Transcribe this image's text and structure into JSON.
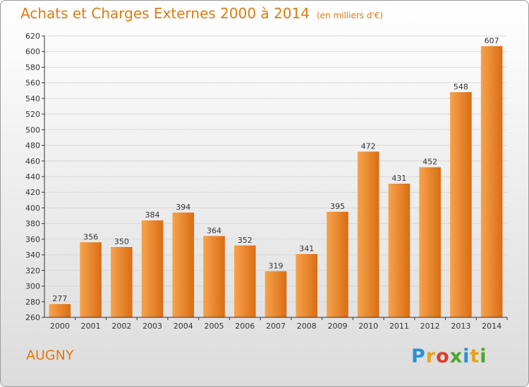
{
  "title": {
    "main": "Achats et Charges Externes 2000 à 2014",
    "unit": "(en milliers d'€)"
  },
  "place": "AUGNY",
  "logo": {
    "text": "Proxiti",
    "letters": [
      "P",
      "r",
      "o",
      "x",
      "i",
      "t",
      "i"
    ],
    "colors": [
      "#2a8fd6",
      "#e8a21a",
      "#d9402b",
      "#4aa82e",
      "#2a8fd6",
      "#e8a21a",
      "#4aa82e"
    ]
  },
  "colors": {
    "title": "#e07a10",
    "bar_light": "#f6a34c",
    "bar_dark": "#d96d14",
    "grid": "#d8d8d8",
    "axis": "#333333"
  },
  "chart_data": {
    "type": "bar",
    "categories": [
      "2000",
      "2001",
      "2002",
      "2003",
      "2004",
      "2005",
      "2006",
      "2007",
      "2008",
      "2009",
      "2010",
      "2011",
      "2012",
      "2013",
      "2014"
    ],
    "values": [
      277,
      356,
      350,
      384,
      394,
      364,
      352,
      319,
      341,
      395,
      472,
      431,
      452,
      548,
      607
    ],
    "ylim": [
      260,
      620
    ],
    "yticks": [
      260,
      280,
      300,
      320,
      340,
      360,
      380,
      400,
      420,
      440,
      460,
      480,
      500,
      520,
      540,
      560,
      580,
      600,
      620
    ],
    "grid": true,
    "data_labels": true
  }
}
